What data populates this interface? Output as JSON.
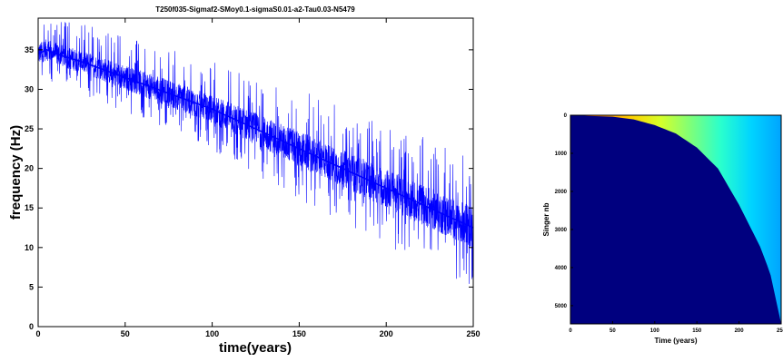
{
  "chart_data": [
    {
      "type": "line",
      "title": "T250f035-Sigmaf2-SMoy0.1-sigmaS0.01-a2-Tau0.03-N5479",
      "xlabel": "time(years)",
      "ylabel": "frequency (Hz)",
      "xlim": [
        0,
        250
      ],
      "ylim": [
        0,
        39
      ],
      "xticks": [
        "0",
        "50",
        "100",
        "150",
        "200",
        "250"
      ],
      "yticks": [
        "0",
        "5",
        "10",
        "15",
        "20",
        "25",
        "30",
        "35"
      ],
      "grid": false,
      "color": "#0000ff",
      "series": [
        {
          "trend_x": [
            0,
            5,
            10,
            25,
            50,
            75,
            100,
            125,
            150,
            175,
            200,
            225,
            250
          ],
          "trend_y": [
            34.5,
            35,
            34.5,
            33.5,
            31.5,
            29.5,
            27.5,
            25,
            22.5,
            20,
            17.5,
            15,
            12.5
          ],
          "spread_x": [
            0,
            50,
            100,
            150,
            200,
            250
          ],
          "spread_y": [
            3,
            3.5,
            4,
            5,
            5.5,
            6
          ],
          "min_y": 5.3,
          "max_y": 38.5
        }
      ]
    },
    {
      "type": "heatmap",
      "xlabel": "Time (years)",
      "ylabel": "Singer nb",
      "xlim": [
        0,
        250
      ],
      "ylim": [
        5479,
        0
      ],
      "xticks": [
        "0",
        "50",
        "100",
        "150",
        "200",
        "250"
      ],
      "yticks": [
        "0",
        "1000",
        "2000",
        "3000",
        "4000",
        "5000"
      ],
      "background_color": "#00007f",
      "boundary": {
        "x": [
          0,
          50,
          75,
          100,
          125,
          150,
          175,
          200,
          225,
          237,
          250
        ],
        "singer": [
          0,
          40,
          110,
          260,
          480,
          850,
          1400,
          2350,
          3450,
          4150,
          5479
        ]
      },
      "colormap": [
        "#ff3300",
        "#ff8a00",
        "#ffd000",
        "#d6ff29",
        "#7dff7a",
        "#29ffce",
        "#00d4ff",
        "#00a4ff"
      ]
    }
  ]
}
